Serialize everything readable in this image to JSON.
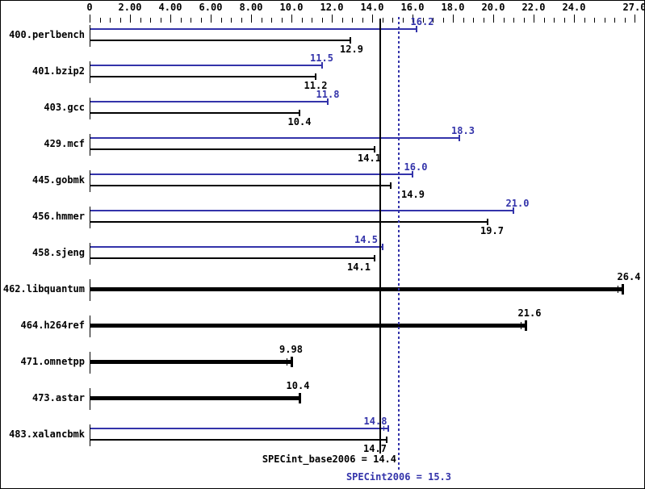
{
  "colors": {
    "peak_blue": "#3333aa",
    "base_black": "#000000",
    "background": "#ffffff"
  },
  "chart_data": {
    "type": "bar",
    "orientation": "horizontal",
    "title": "",
    "xlabel": "",
    "ylabel": "",
    "grid": false,
    "axis": {
      "min": 0,
      "max": 27,
      "minor_step": 0.5,
      "major_ticks": [
        0,
        2,
        4,
        6,
        8,
        10,
        12,
        14,
        16,
        18,
        20,
        22,
        24,
        27
      ],
      "major_labels": [
        "0",
        "2.00",
        "4.00",
        "6.00",
        "8.00",
        "10.0",
        "12.0",
        "14.0",
        "16.0",
        "18.0",
        "20.0",
        "22.0",
        "24.0",
        "27.0"
      ]
    },
    "series": [
      {
        "name": "peak",
        "color": "#3333aa"
      },
      {
        "name": "base",
        "color": "#000000"
      }
    ],
    "benchmarks": [
      {
        "name": "400.perlbench",
        "peak": 16.2,
        "peak_label": "16.2",
        "base": 12.9,
        "base_label": "12.9",
        "peak_dx": 7,
        "base_dx": 2
      },
      {
        "name": "401.bzip2",
        "peak": 11.5,
        "peak_label": "11.5",
        "base": 11.2,
        "base_label": "11.2",
        "peak_dx": 0,
        "base_dx": 0
      },
      {
        "name": "403.gcc",
        "peak": 11.8,
        "peak_label": "11.8",
        "base": 10.4,
        "base_label": "10.4",
        "peak_dx": 0,
        "base_dx": 0
      },
      {
        "name": "429.mcf",
        "peak": 18.3,
        "peak_label": "18.3",
        "base": 14.1,
        "base_label": "14.1",
        "peak_dx": 5,
        "base_dx": -6
      },
      {
        "name": "445.gobmk",
        "peak": 16.0,
        "peak_label": "16.0",
        "base": 14.9,
        "base_label": "14.9",
        "peak_dx": 4,
        "base_dx": 28
      },
      {
        "name": "456.hmmer",
        "peak": 21.0,
        "peak_label": "21.0",
        "base": 19.7,
        "base_label": "19.7",
        "peak_dx": 5,
        "base_dx": 6
      },
      {
        "name": "458.sjeng",
        "peak": 14.5,
        "peak_label": "14.5",
        "base": 14.1,
        "base_label": "14.1",
        "peak_dx": -20,
        "base_dx": -19
      },
      {
        "name": "462.libquantum",
        "single": 26.4,
        "single_label": "26.4",
        "single_dx": 8,
        "second_tick": true
      },
      {
        "name": "464.h264ref",
        "single": 21.6,
        "single_label": "21.6",
        "single_dx": 5,
        "second_tick": true
      },
      {
        "name": "471.omnetpp",
        "single": 9.98,
        "single_label": "9.98",
        "single_dx": 0,
        "second_tick": true
      },
      {
        "name": "473.astar",
        "single": 10.4,
        "single_label": "10.4",
        "single_dx": -2,
        "second_tick": false
      },
      {
        "name": "483.xalancbmk",
        "peak": 14.8,
        "peak_label": "14.8",
        "base": 14.7,
        "base_label": "14.7",
        "peak_dx": -16,
        "base_dx": -14,
        "peak_second_tick": true
      }
    ],
    "reference_lines": [
      {
        "name": "base_mean",
        "value": 14.4,
        "style": "solid",
        "color": "#000000",
        "label": "SPECint_base2006 = 14.4"
      },
      {
        "name": "peak_mean",
        "value": 15.3,
        "style": "dotted",
        "color": "#3333aa",
        "label": "SPECint2006 = 15.3"
      }
    ]
  }
}
